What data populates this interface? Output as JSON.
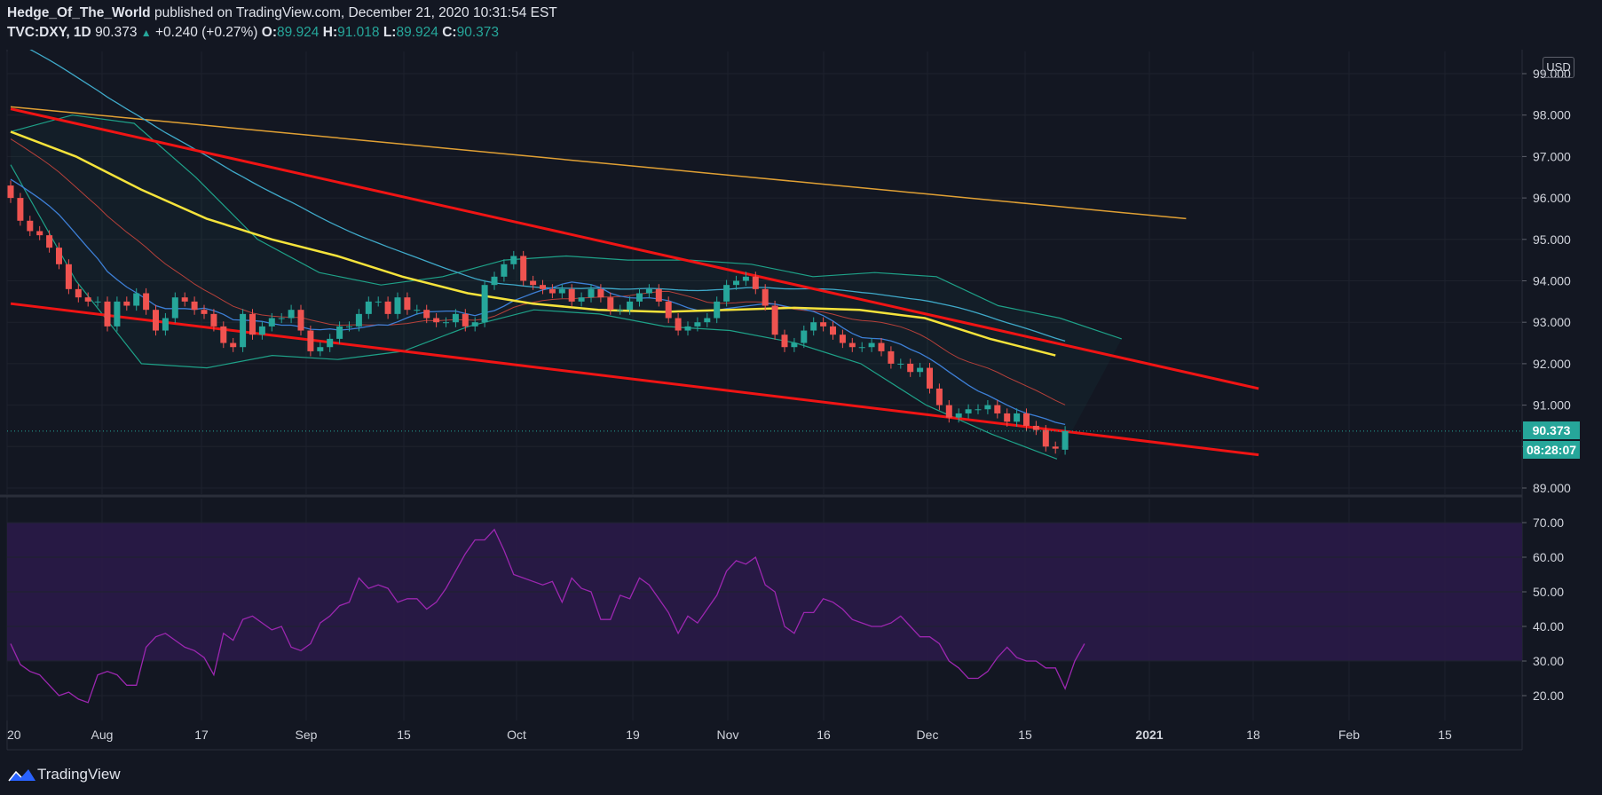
{
  "header": {
    "author": "Hedge_Of_The_World",
    "published": "published on TradingView.com, December 21, 2020 10:31:54 EST",
    "symbol": "TVC:DXY, 1D",
    "last": "90.373",
    "change_arrow": "▲",
    "change": "+0.240 (+0.27%)",
    "o_label": "O:",
    "o_value": "89.924",
    "h_label": "H:",
    "h_value": "91.018",
    "l_label": "L:",
    "l_value": "89.924",
    "c_label": "C:",
    "c_value": "90.373"
  },
  "currency_button": "USD",
  "price_tag": "90.373",
  "countdown_tag": "08:28:07",
  "footer": {
    "brand": "TradingView",
    "logo_icon": "tradingview-logo-icon"
  },
  "colors": {
    "background": "#131722",
    "up": "#26a69a",
    "down": "#ef5350",
    "trendline": "#f01414",
    "ma_yellow": "#f5e33b",
    "ma_orange": "#e0a034",
    "ma_cyan": "#3fa9c9",
    "ma_blue": "#3d7fd6",
    "ma_red": "#b5403a",
    "bollinger": "#1ea188",
    "rsi_line": "#9c27b0",
    "rsi_band": "#2a1a48"
  },
  "chart_data": [
    {
      "type": "candlestick",
      "symbol": "TVC:DXY",
      "interval": "1D",
      "x_tick_labels": [
        "20",
        "Aug",
        "17",
        "Sep",
        "15",
        "Oct",
        "19",
        "Nov",
        "16",
        "Dec",
        "15",
        "2021",
        "18",
        "Feb",
        "15"
      ],
      "y_tick_labels": [
        "89.000",
        "90.000",
        "91.000",
        "92.000",
        "93.000",
        "94.000",
        "95.000",
        "96.000",
        "97.000",
        "98.000",
        "99.000"
      ],
      "ylim": [
        88.8,
        99.0
      ],
      "grid": true,
      "closes": [
        96.0,
        95.45,
        95.2,
        95.1,
        94.8,
        94.4,
        93.8,
        93.6,
        93.5,
        93.5,
        92.9,
        93.5,
        93.4,
        93.7,
        93.3,
        92.8,
        93.1,
        93.6,
        93.5,
        93.3,
        93.2,
        92.9,
        92.5,
        92.4,
        93.2,
        92.7,
        92.9,
        93.1,
        93.1,
        93.3,
        92.8,
        92.3,
        92.4,
        92.6,
        92.9,
        92.9,
        93.2,
        93.5,
        93.5,
        93.2,
        93.6,
        93.3,
        93.3,
        93.1,
        93.0,
        93.0,
        93.2,
        92.9,
        93.0,
        93.9,
        94.1,
        94.4,
        94.6,
        94.0,
        93.9,
        93.8,
        93.7,
        93.8,
        93.5,
        93.6,
        93.8,
        93.6,
        93.3,
        93.3,
        93.5,
        93.7,
        93.8,
        93.5,
        93.1,
        92.8,
        92.9,
        93.0,
        93.1,
        93.5,
        93.9,
        94.0,
        94.1,
        93.8,
        93.4,
        92.7,
        92.4,
        92.5,
        92.8,
        93.0,
        92.9,
        92.7,
        92.5,
        92.4,
        92.4,
        92.5,
        92.3,
        92.0,
        92.0,
        91.8,
        91.9,
        91.4,
        91.0,
        90.7,
        90.8,
        90.9,
        90.9,
        91.0,
        90.8,
        90.6,
        90.8,
        90.5,
        90.4,
        90.0,
        89.95,
        90.373
      ],
      "series": [
        {
          "kind": "trendline",
          "points": [
            [
              0,
              98.15
            ],
            [
              129,
              91.4
            ]
          ]
        },
        {
          "kind": "trendline",
          "points": [
            [
              0,
              93.45
            ],
            [
              129,
              89.8
            ]
          ]
        },
        {
          "kind": "moving-average",
          "values": [
            98.2,
            98.1,
            98.0,
            97.9,
            97.8,
            97.7,
            97.6,
            97.5,
            97.4,
            97.3,
            97.2,
            97.1,
            97.0,
            96.9,
            96.8,
            96.7,
            96.6,
            96.5,
            96.4,
            96.3,
            96.2,
            96.1,
            96.0,
            95.9,
            95.8,
            95.7,
            95.6,
            95.5
          ]
        },
        {
          "kind": "moving-average",
          "values": [
            97.6,
            97.0,
            96.2,
            95.5,
            95.0,
            94.6,
            94.1,
            93.7,
            93.45,
            93.3,
            93.25,
            93.3,
            93.35,
            93.3,
            93.1,
            92.6,
            92.2
          ]
        },
        {
          "kind": "bollinger-upper",
          "values": [
            97.6,
            98.0,
            97.8,
            96.5,
            95.0,
            94.2,
            93.9,
            94.1,
            94.5,
            94.6,
            94.5,
            94.5,
            94.4,
            94.1,
            94.2,
            94.1,
            93.4,
            93.1,
            92.6
          ]
        },
        {
          "kind": "bollinger-lower",
          "values": [
            96.8,
            94.0,
            92.0,
            91.9,
            92.2,
            92.1,
            92.3,
            92.9,
            93.3,
            93.2,
            92.9,
            92.8,
            92.5,
            92.0,
            91.0,
            90.3,
            89.7
          ]
        },
        {
          "kind": "rsi",
          "ylim": [
            15,
            75
          ],
          "y_tick_labels": [
            "20.00",
            "30.00",
            "40.00",
            "50.00",
            "60.00",
            "70.00"
          ],
          "bands": [
            30,
            70
          ],
          "values": [
            35,
            29,
            27,
            26,
            23,
            20,
            21,
            19,
            18,
            26,
            27,
            26,
            23,
            23,
            34,
            37,
            38,
            36,
            34,
            33,
            31,
            26,
            38,
            36,
            42,
            43,
            41,
            39,
            40,
            34,
            33,
            35,
            41,
            43,
            46,
            47,
            54,
            51,
            52,
            51,
            47,
            48,
            48,
            45,
            47,
            51,
            56,
            61,
            65,
            65,
            68,
            62,
            55,
            54,
            53,
            52,
            53,
            47,
            54,
            51,
            50,
            42,
            42,
            49,
            48,
            54,
            52,
            48,
            44,
            38,
            43,
            41,
            45,
            49,
            56,
            59,
            58,
            60,
            52,
            50,
            40,
            38,
            44,
            44,
            48,
            47,
            45,
            42,
            41,
            40,
            40,
            41,
            43,
            40,
            37,
            37,
            35,
            30,
            28,
            25,
            25,
            27,
            31,
            34,
            31,
            30,
            30,
            28,
            28,
            22,
            30,
            35
          ]
        }
      ]
    }
  ]
}
